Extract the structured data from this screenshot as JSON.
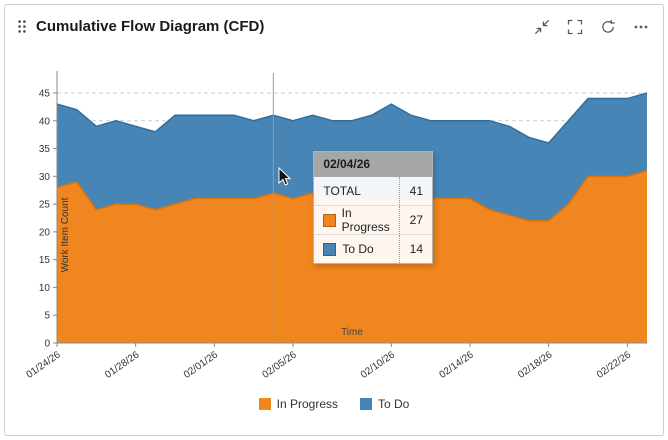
{
  "widget": {
    "title": "Cumulative Flow Diagram (CFD)",
    "toolbar_icons": [
      "collapse-icon",
      "fullscreen-icon",
      "refresh-icon",
      "more-options-icon"
    ]
  },
  "chart_data": {
    "type": "area",
    "stacked": true,
    "title": "Cumulative Flow Diagram (CFD)",
    "xlabel": "Time",
    "ylabel": "Work Item Count",
    "ylim": [
      0,
      45
    ],
    "yticks": [
      0,
      5,
      10,
      15,
      20,
      25,
      30,
      35,
      40,
      45
    ],
    "grid": "horizontal-dashed",
    "legend_position": "bottom",
    "x": [
      "01/24/26",
      "01/25/26",
      "01/26/26",
      "01/27/26",
      "01/28/26",
      "01/29/26",
      "01/30/26",
      "01/31/26",
      "02/01/26",
      "02/02/26",
      "02/03/26",
      "02/04/26",
      "02/05/26",
      "02/06/26",
      "02/07/26",
      "02/08/26",
      "02/09/26",
      "02/10/26",
      "02/11/26",
      "02/12/26",
      "02/13/26",
      "02/14/26",
      "02/15/26",
      "02/16/26",
      "02/17/26",
      "02/18/26",
      "02/19/26",
      "02/20/26",
      "02/21/26",
      "02/22/26",
      "02/23/26"
    ],
    "xticks": [
      "01/24/26",
      "01/28/26",
      "02/01/26",
      "02/05/26",
      "02/10/26",
      "02/14/26",
      "02/18/26",
      "02/22/26"
    ],
    "series": [
      {
        "name": "In Progress",
        "color": "#F0861F",
        "line": "#D9730B",
        "values": [
          28,
          29,
          24,
          25,
          25,
          24,
          25,
          26,
          26,
          26,
          26,
          27,
          26,
          27,
          26,
          26,
          26,
          26,
          26,
          26,
          26,
          26,
          24,
          23,
          22,
          22,
          25,
          30,
          30,
          30,
          31
        ]
      },
      {
        "name": "To Do",
        "color": "#4685B5",
        "line": "#2F6E9E",
        "values": [
          15,
          13,
          15,
          15,
          14,
          14,
          16,
          15,
          15,
          15,
          14,
          14,
          14,
          14,
          14,
          14,
          15,
          17,
          15,
          14,
          14,
          14,
          16,
          16,
          15,
          14,
          15,
          14,
          14,
          14,
          14
        ]
      }
    ]
  },
  "tooltip": {
    "date": "02/04/26",
    "rows": [
      {
        "label": "TOTAL",
        "value": "41"
      },
      {
        "label": "In Progress",
        "value": "27",
        "color": "#F0861F"
      },
      {
        "label": "To Do",
        "value": "14",
        "color": "#4685B5"
      }
    ]
  },
  "legend": [
    {
      "label": "In Progress",
      "color": "#F0861F"
    },
    {
      "label": "To Do",
      "color": "#4685B5"
    }
  ]
}
